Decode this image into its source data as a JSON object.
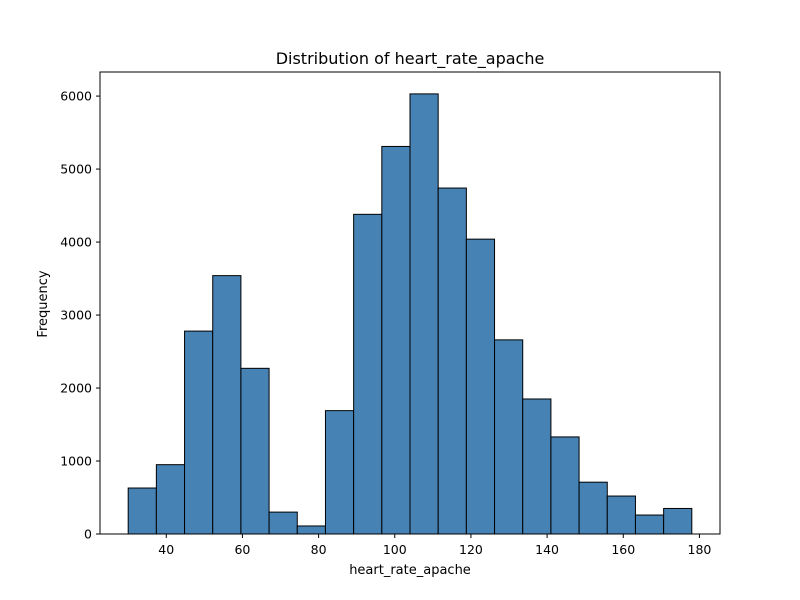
{
  "chart_data": {
    "type": "bar",
    "title": "Distribution of heart_rate_apache",
    "xlabel": "heart_rate_apache",
    "ylabel": "Frequency",
    "bin_edges": [
      30,
      37.4,
      44.8,
      52.2,
      59.6,
      67.0,
      74.4,
      81.8,
      89.2,
      96.6,
      104.0,
      111.4,
      118.8,
      126.2,
      133.6,
      141.0,
      148.4,
      155.8,
      163.2,
      170.6,
      178.0
    ],
    "values": [
      630,
      950,
      2780,
      3540,
      2270,
      300,
      110,
      1690,
      4380,
      5310,
      6030,
      4740,
      4040,
      2660,
      1850,
      1330,
      710,
      520,
      260,
      350
    ],
    "xlim": [
      22.6,
      185.4
    ],
    "ylim": [
      0,
      6330
    ],
    "xticks": [
      40,
      60,
      80,
      100,
      120,
      140,
      160,
      180
    ],
    "yticks": [
      0,
      1000,
      2000,
      3000,
      4000,
      5000,
      6000
    ],
    "bar_color": "#4682b4",
    "edge_color": "#000000",
    "grid": false,
    "legend": "none"
  }
}
